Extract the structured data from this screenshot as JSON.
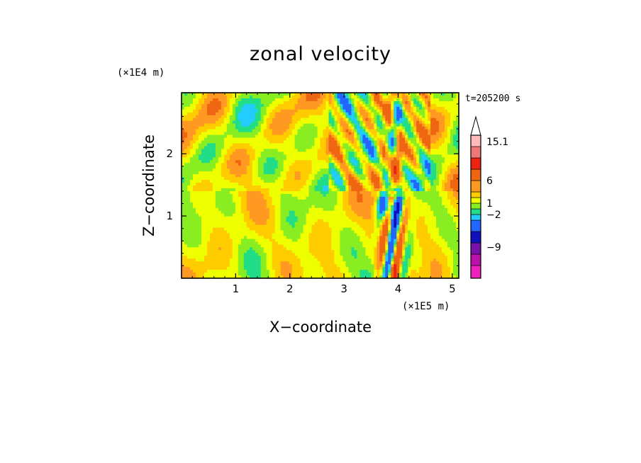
{
  "chart_data": {
    "type": "heatmap",
    "title": "zonal velocity",
    "xlabel": "X−coordinate",
    "ylabel": "Z−coordinate",
    "x_unit": "(×1E5 m)",
    "y_unit": "(×1E4 m)",
    "time_label": "t=205200 s",
    "xlim": [
      0.0,
      5.12
    ],
    "ylim": [
      0.0,
      2.98
    ],
    "x_ticks": [
      1,
      2,
      3,
      4,
      5
    ],
    "y_ticks": [
      1,
      2
    ],
    "colorbar": {
      "levels": [
        -15,
        -12,
        -9,
        -6,
        -3,
        -2,
        -1,
        0,
        1,
        2,
        3,
        6,
        9,
        12,
        15.1
      ],
      "colors": [
        "#ee22bb",
        "#bb11aa",
        "#7711aa",
        "#1111bb",
        "#2266ff",
        "#22ccff",
        "#22dd88",
        "#88ee22",
        "#eeff00",
        "#ffcc00",
        "#ff9922",
        "#ee6611",
        "#ee2211",
        "#ee7777",
        "#ffbbbb",
        "#ffffff"
      ],
      "labels": [
        "15.1",
        "6",
        "1",
        "−2",
        "−9"
      ],
      "extend": "max"
    }
  }
}
